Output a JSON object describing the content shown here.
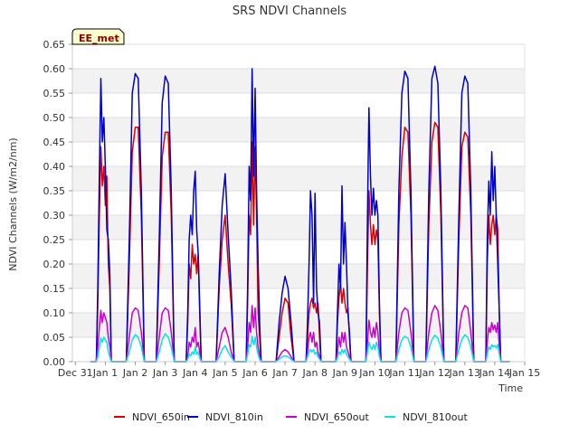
{
  "chart_data": {
    "type": "line",
    "title": "SRS NDVI Channels",
    "xlabel": "Time",
    "ylabel": "NDVI Channels (W/m2/nm)",
    "badge": "EE_met",
    "xlim": [
      -0.6,
      14.5
    ],
    "ylim": [
      0.0,
      0.65
    ],
    "x_ticks": [
      {
        "value": -0.5,
        "label": "Dec 31"
      },
      {
        "value": 0.5,
        "label": "Jan 1"
      },
      {
        "value": 1.5,
        "label": "Jan 2"
      },
      {
        "value": 2.5,
        "label": "Jan 3"
      },
      {
        "value": 3.5,
        "label": "Jan 4"
      },
      {
        "value": 4.5,
        "label": "Jan 5"
      },
      {
        "value": 5.5,
        "label": "Jan 6"
      },
      {
        "value": 6.5,
        "label": "Jan 7"
      },
      {
        "value": 7.5,
        "label": "Jan 8"
      },
      {
        "value": 8.5,
        "label": "Jan 9"
      },
      {
        "value": 9.5,
        "label": "Jan 10"
      },
      {
        "value": 10.5,
        "label": "Jan 11"
      },
      {
        "value": 11.5,
        "label": "Jan 12"
      },
      {
        "value": 12.5,
        "label": "Jan 13"
      },
      {
        "value": 13.5,
        "label": "Jan 14"
      },
      {
        "value": 14.5,
        "label": "Jan 15"
      }
    ],
    "y_ticks": [
      0.0,
      0.05,
      0.1,
      0.15,
      0.2,
      0.25,
      0.3,
      0.35,
      0.4,
      0.45,
      0.5,
      0.55,
      0.6,
      0.65
    ],
    "grid": true,
    "legend_position": "bottom",
    "series": [
      {
        "name": "NDVI_650in",
        "color": "#dd0000",
        "x": [
          0.0,
          0.2,
          0.25,
          0.3,
          0.35,
          0.4,
          0.45,
          0.5,
          0.55,
          0.6,
          0.65,
          0.7,
          1.0,
          1.2,
          1.3,
          1.4,
          1.5,
          1.6,
          1.7,
          1.8,
          2.0,
          2.2,
          2.3,
          2.4,
          2.5,
          2.6,
          2.7,
          2.8,
          3.0,
          3.2,
          3.25,
          3.3,
          3.35,
          3.4,
          3.45,
          3.5,
          3.55,
          3.6,
          3.65,
          3.7,
          4.0,
          4.2,
          4.3,
          4.4,
          4.5,
          4.6,
          4.7,
          4.8,
          5.0,
          5.2,
          5.25,
          5.3,
          5.35,
          5.4,
          5.45,
          5.5,
          5.55,
          5.6,
          5.65,
          5.7,
          6.0,
          6.2,
          6.3,
          6.4,
          6.5,
          6.6,
          6.7,
          6.8,
          7.0,
          7.2,
          7.25,
          7.3,
          7.35,
          7.4,
          7.45,
          7.5,
          7.55,
          7.6,
          7.65,
          7.7,
          8.0,
          8.2,
          8.25,
          8.3,
          8.35,
          8.4,
          8.45,
          8.5,
          8.55,
          8.6,
          8.65,
          8.7,
          9.0,
          9.2,
          9.25,
          9.3,
          9.35,
          9.4,
          9.45,
          9.5,
          9.55,
          9.6,
          9.65,
          9.7,
          10.0,
          10.2,
          10.3,
          10.4,
          10.5,
          10.6,
          10.7,
          10.8,
          11.0,
          11.2,
          11.3,
          11.4,
          11.5,
          11.6,
          11.7,
          11.8,
          12.0,
          12.2,
          12.3,
          12.4,
          12.5,
          12.6,
          12.7,
          12.8,
          13.0,
          13.2,
          13.25,
          13.3,
          13.35,
          13.4,
          13.45,
          13.5,
          13.55,
          13.6,
          13.65,
          13.7,
          14.0
        ],
        "y": [
          0.0,
          0.0,
          0.12,
          0.3,
          0.44,
          0.36,
          0.4,
          0.32,
          0.38,
          0.2,
          0.15,
          0.0,
          0.0,
          0.0,
          0.2,
          0.43,
          0.48,
          0.48,
          0.3,
          0.0,
          0.0,
          0.0,
          0.2,
          0.42,
          0.47,
          0.47,
          0.3,
          0.0,
          0.0,
          0.0,
          0.08,
          0.2,
          0.17,
          0.24,
          0.2,
          0.22,
          0.18,
          0.22,
          0.1,
          0.0,
          0.0,
          0.0,
          0.15,
          0.25,
          0.3,
          0.2,
          0.12,
          0.0,
          0.0,
          0.0,
          0.12,
          0.3,
          0.26,
          0.45,
          0.28,
          0.44,
          0.3,
          0.1,
          0.05,
          0.0,
          0.0,
          0.0,
          0.05,
          0.1,
          0.13,
          0.12,
          0.05,
          0.0,
          0.0,
          0.0,
          0.05,
          0.1,
          0.12,
          0.13,
          0.11,
          0.12,
          0.1,
          0.12,
          0.05,
          0.0,
          0.0,
          0.0,
          0.08,
          0.13,
          0.16,
          0.12,
          0.15,
          0.12,
          0.1,
          0.11,
          0.05,
          0.0,
          0.0,
          0.0,
          0.2,
          0.35,
          0.28,
          0.24,
          0.28,
          0.24,
          0.27,
          0.25,
          0.1,
          0.0,
          0.0,
          0.0,
          0.28,
          0.42,
          0.48,
          0.47,
          0.3,
          0.0,
          0.0,
          0.0,
          0.28,
          0.45,
          0.49,
          0.48,
          0.3,
          0.0,
          0.0,
          0.0,
          0.25,
          0.44,
          0.47,
          0.46,
          0.3,
          0.0,
          0.0,
          0.0,
          0.2,
          0.3,
          0.24,
          0.28,
          0.3,
          0.26,
          0.3,
          0.27,
          0.1,
          0.0,
          0.0
        ]
      },
      {
        "name": "NDVI_810in",
        "color": "#0000cc",
        "x": [
          0.0,
          0.2,
          0.25,
          0.3,
          0.35,
          0.4,
          0.45,
          0.5,
          0.55,
          0.6,
          0.65,
          0.7,
          1.0,
          1.2,
          1.3,
          1.4,
          1.5,
          1.6,
          1.7,
          1.8,
          2.0,
          2.2,
          2.3,
          2.4,
          2.5,
          2.6,
          2.7,
          2.8,
          3.0,
          3.2,
          3.25,
          3.3,
          3.35,
          3.4,
          3.45,
          3.5,
          3.55,
          3.6,
          3.65,
          3.7,
          4.0,
          4.2,
          4.3,
          4.4,
          4.5,
          4.6,
          4.7,
          4.8,
          5.0,
          5.2,
          5.25,
          5.3,
          5.35,
          5.4,
          5.45,
          5.5,
          5.55,
          5.6,
          5.65,
          5.7,
          6.0,
          6.2,
          6.3,
          6.4,
          6.5,
          6.6,
          6.7,
          6.8,
          7.0,
          7.2,
          7.25,
          7.3,
          7.35,
          7.4,
          7.45,
          7.5,
          7.55,
          7.6,
          7.65,
          7.7,
          8.0,
          8.2,
          8.25,
          8.3,
          8.35,
          8.4,
          8.45,
          8.5,
          8.55,
          8.6,
          8.65,
          8.7,
          9.0,
          9.2,
          9.25,
          9.3,
          9.35,
          9.4,
          9.45,
          9.5,
          9.55,
          9.6,
          9.65,
          9.7,
          10.0,
          10.2,
          10.3,
          10.4,
          10.5,
          10.6,
          10.7,
          10.8,
          11.0,
          11.2,
          11.3,
          11.4,
          11.5,
          11.6,
          11.7,
          11.8,
          12.0,
          12.2,
          12.3,
          12.4,
          12.5,
          12.6,
          12.7,
          12.8,
          13.0,
          13.2,
          13.25,
          13.3,
          13.35,
          13.4,
          13.45,
          13.5,
          13.55,
          13.6,
          13.65,
          13.7,
          14.0
        ],
        "y": [
          0.0,
          0.0,
          0.15,
          0.38,
          0.58,
          0.45,
          0.5,
          0.4,
          0.27,
          0.25,
          0.18,
          0.0,
          0.0,
          0.0,
          0.25,
          0.55,
          0.59,
          0.58,
          0.35,
          0.0,
          0.0,
          0.0,
          0.25,
          0.53,
          0.585,
          0.57,
          0.35,
          0.0,
          0.0,
          0.0,
          0.1,
          0.25,
          0.3,
          0.26,
          0.35,
          0.39,
          0.27,
          0.22,
          0.12,
          0.0,
          0.0,
          0.0,
          0.18,
          0.32,
          0.385,
          0.26,
          0.15,
          0.0,
          0.0,
          0.0,
          0.15,
          0.4,
          0.33,
          0.6,
          0.38,
          0.56,
          0.35,
          0.2,
          0.08,
          0.0,
          0.0,
          0.0,
          0.08,
          0.14,
          0.175,
          0.15,
          0.08,
          0.0,
          0.0,
          0.0,
          0.08,
          0.2,
          0.35,
          0.3,
          0.12,
          0.345,
          0.15,
          0.1,
          0.08,
          0.0,
          0.0,
          0.0,
          0.1,
          0.2,
          0.15,
          0.36,
          0.2,
          0.285,
          0.2,
          0.1,
          0.06,
          0.0,
          0.0,
          0.0,
          0.3,
          0.52,
          0.38,
          0.3,
          0.355,
          0.3,
          0.33,
          0.3,
          0.12,
          0.0,
          0.0,
          0.0,
          0.35,
          0.55,
          0.595,
          0.58,
          0.35,
          0.0,
          0.0,
          0.0,
          0.35,
          0.58,
          0.605,
          0.57,
          0.35,
          0.0,
          0.0,
          0.0,
          0.3,
          0.55,
          0.585,
          0.57,
          0.35,
          0.0,
          0.0,
          0.0,
          0.25,
          0.37,
          0.3,
          0.43,
          0.33,
          0.4,
          0.3,
          0.2,
          0.1,
          0.0,
          0.0
        ]
      },
      {
        "name": "NDVI_650out",
        "color": "#cc00cc",
        "x": [
          0.0,
          0.2,
          0.25,
          0.3,
          0.35,
          0.4,
          0.45,
          0.5,
          0.55,
          0.6,
          0.65,
          0.7,
          1.0,
          1.2,
          1.3,
          1.4,
          1.5,
          1.6,
          1.7,
          1.8,
          2.0,
          2.2,
          2.3,
          2.4,
          2.5,
          2.6,
          2.7,
          2.8,
          3.0,
          3.2,
          3.25,
          3.3,
          3.35,
          3.4,
          3.45,
          3.5,
          3.55,
          3.6,
          3.65,
          3.7,
          4.0,
          4.2,
          4.3,
          4.4,
          4.5,
          4.6,
          4.7,
          4.8,
          5.0,
          5.2,
          5.25,
          5.3,
          5.35,
          5.4,
          5.45,
          5.5,
          5.55,
          5.6,
          5.65,
          5.7,
          6.0,
          6.2,
          6.3,
          6.4,
          6.5,
          6.6,
          6.7,
          6.8,
          7.0,
          7.2,
          7.25,
          7.3,
          7.35,
          7.4,
          7.45,
          7.5,
          7.55,
          7.6,
          7.65,
          7.7,
          8.0,
          8.2,
          8.25,
          8.3,
          8.35,
          8.4,
          8.45,
          8.5,
          8.55,
          8.6,
          8.65,
          8.7,
          9.0,
          9.2,
          9.25,
          9.3,
          9.35,
          9.4,
          9.45,
          9.5,
          9.55,
          9.6,
          9.65,
          9.7,
          10.0,
          10.2,
          10.3,
          10.4,
          10.5,
          10.6,
          10.7,
          10.8,
          11.0,
          11.2,
          11.3,
          11.4,
          11.5,
          11.6,
          11.7,
          11.8,
          12.0,
          12.2,
          12.3,
          12.4,
          12.5,
          12.6,
          12.7,
          12.8,
          13.0,
          13.2,
          13.25,
          13.3,
          13.35,
          13.4,
          13.45,
          13.5,
          13.55,
          13.6,
          13.65,
          13.7,
          14.0
        ],
        "y": [
          0.0,
          0.0,
          0.03,
          0.07,
          0.105,
          0.08,
          0.1,
          0.09,
          0.08,
          0.05,
          0.03,
          0.0,
          0.0,
          0.0,
          0.05,
          0.1,
          0.11,
          0.105,
          0.06,
          0.0,
          0.0,
          0.0,
          0.05,
          0.1,
          0.11,
          0.105,
          0.06,
          0.0,
          0.0,
          0.0,
          0.01,
          0.04,
          0.03,
          0.05,
          0.04,
          0.07,
          0.03,
          0.04,
          0.02,
          0.0,
          0.0,
          0.0,
          0.03,
          0.06,
          0.07,
          0.05,
          0.02,
          0.0,
          0.0,
          0.0,
          0.03,
          0.08,
          0.06,
          0.115,
          0.07,
          0.11,
          0.06,
          0.03,
          0.01,
          0.0,
          0.0,
          0.0,
          0.01,
          0.02,
          0.025,
          0.02,
          0.01,
          0.0,
          0.0,
          0.0,
          0.02,
          0.05,
          0.06,
          0.04,
          0.06,
          0.03,
          0.04,
          0.02,
          0.01,
          0.0,
          0.0,
          0.0,
          0.02,
          0.05,
          0.03,
          0.06,
          0.04,
          0.06,
          0.03,
          0.02,
          0.01,
          0.0,
          0.0,
          0.0,
          0.04,
          0.085,
          0.06,
          0.05,
          0.07,
          0.05,
          0.08,
          0.06,
          0.02,
          0.0,
          0.0,
          0.0,
          0.06,
          0.1,
          0.11,
          0.105,
          0.06,
          0.0,
          0.0,
          0.0,
          0.06,
          0.1,
          0.115,
          0.105,
          0.06,
          0.0,
          0.0,
          0.0,
          0.06,
          0.1,
          0.115,
          0.11,
          0.06,
          0.0,
          0.0,
          0.0,
          0.04,
          0.07,
          0.06,
          0.08,
          0.065,
          0.075,
          0.06,
          0.08,
          0.03,
          0.0,
          0.0
        ]
      },
      {
        "name": "NDVI_810out",
        "color": "#00e5e5",
        "x": [
          0.0,
          0.2,
          0.25,
          0.3,
          0.35,
          0.4,
          0.45,
          0.5,
          0.55,
          0.6,
          0.65,
          0.7,
          1.0,
          1.2,
          1.3,
          1.4,
          1.5,
          1.6,
          1.7,
          1.8,
          2.0,
          2.2,
          2.3,
          2.4,
          2.5,
          2.6,
          2.7,
          2.8,
          3.0,
          3.2,
          3.25,
          3.3,
          3.35,
          3.4,
          3.45,
          3.5,
          3.55,
          3.6,
          3.65,
          3.7,
          4.0,
          4.2,
          4.3,
          4.4,
          4.5,
          4.6,
          4.7,
          4.8,
          5.0,
          5.2,
          5.25,
          5.3,
          5.35,
          5.4,
          5.45,
          5.5,
          5.55,
          5.6,
          5.65,
          5.7,
          6.0,
          6.2,
          6.3,
          6.4,
          6.5,
          6.6,
          6.7,
          6.8,
          7.0,
          7.2,
          7.25,
          7.3,
          7.35,
          7.4,
          7.45,
          7.5,
          7.55,
          7.6,
          7.65,
          7.7,
          8.0,
          8.2,
          8.25,
          8.3,
          8.35,
          8.4,
          8.45,
          8.5,
          8.55,
          8.6,
          8.65,
          8.7,
          9.0,
          9.2,
          9.25,
          9.3,
          9.35,
          9.4,
          9.45,
          9.5,
          9.55,
          9.6,
          9.65,
          9.7,
          10.0,
          10.2,
          10.3,
          10.4,
          10.5,
          10.6,
          10.7,
          10.8,
          11.0,
          11.2,
          11.3,
          11.4,
          11.5,
          11.6,
          11.7,
          11.8,
          12.0,
          12.2,
          12.3,
          12.4,
          12.5,
          12.6,
          12.7,
          12.8,
          13.0,
          13.2,
          13.25,
          13.3,
          13.35,
          13.4,
          13.45,
          13.5,
          13.55,
          13.6,
          13.65,
          13.7,
          14.0
        ],
        "y": [
          0.0,
          0.0,
          0.01,
          0.03,
          0.048,
          0.04,
          0.05,
          0.045,
          0.04,
          0.02,
          0.01,
          0.0,
          0.0,
          0.0,
          0.02,
          0.045,
          0.055,
          0.05,
          0.03,
          0.0,
          0.0,
          0.0,
          0.02,
          0.045,
          0.057,
          0.05,
          0.03,
          0.0,
          0.0,
          0.0,
          0.005,
          0.015,
          0.012,
          0.02,
          0.015,
          0.03,
          0.015,
          0.02,
          0.008,
          0.0,
          0.0,
          0.0,
          0.01,
          0.025,
          0.033,
          0.02,
          0.01,
          0.0,
          0.0,
          0.0,
          0.015,
          0.035,
          0.03,
          0.052,
          0.035,
          0.05,
          0.03,
          0.015,
          0.005,
          0.0,
          0.0,
          0.0,
          0.005,
          0.01,
          0.012,
          0.01,
          0.005,
          0.0,
          0.0,
          0.0,
          0.01,
          0.02,
          0.025,
          0.02,
          0.025,
          0.015,
          0.02,
          0.01,
          0.005,
          0.0,
          0.0,
          0.0,
          0.008,
          0.02,
          0.015,
          0.025,
          0.018,
          0.025,
          0.015,
          0.01,
          0.005,
          0.0,
          0.0,
          0.0,
          0.02,
          0.04,
          0.03,
          0.025,
          0.035,
          0.025,
          0.04,
          0.03,
          0.01,
          0.0,
          0.0,
          0.0,
          0.025,
          0.045,
          0.052,
          0.048,
          0.03,
          0.0,
          0.0,
          0.0,
          0.025,
          0.045,
          0.054,
          0.048,
          0.03,
          0.0,
          0.0,
          0.0,
          0.025,
          0.045,
          0.055,
          0.05,
          0.03,
          0.0,
          0.0,
          0.0,
          0.015,
          0.03,
          0.025,
          0.035,
          0.03,
          0.033,
          0.028,
          0.035,
          0.015,
          0.0,
          0.0
        ]
      }
    ]
  }
}
